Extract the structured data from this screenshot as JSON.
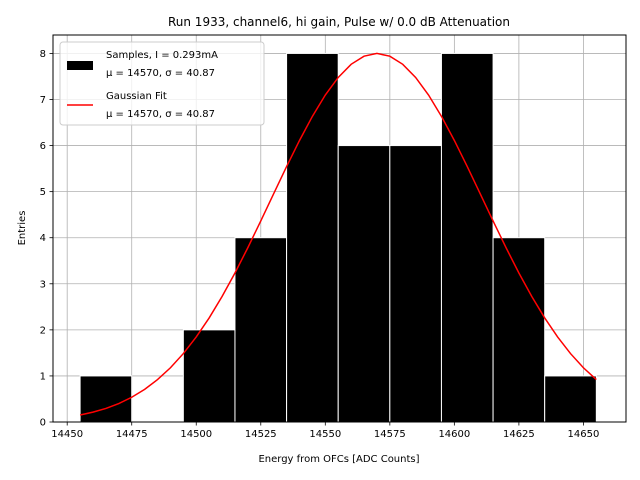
{
  "chart_data": {
    "type": "bar",
    "title": "Run 1933, channel6, hi gain, Pulse w/ 0.0 dB Attenuation",
    "xlabel": "Energy from OFCs [ADC Counts]",
    "ylabel": "Entries",
    "xlim": [
      14444.5,
      14666.5
    ],
    "ylim": [
      0,
      8.4
    ],
    "grid": true,
    "xticks": [
      14450,
      14475,
      14500,
      14525,
      14550,
      14575,
      14600,
      14625,
      14650
    ],
    "yticks": [
      0,
      1,
      2,
      3,
      4,
      5,
      6,
      7,
      8
    ],
    "histogram": {
      "name": "Samples, I = 0.293mA",
      "stats": "μ = 14570, σ = 40.87",
      "bin_edges": [
        14455,
        14475,
        14495,
        14515,
        14535,
        14555,
        14575,
        14595,
        14615,
        14635,
        14655
      ],
      "counts": [
        1,
        0,
        2,
        4,
        8,
        6,
        6,
        8,
        4,
        1
      ],
      "color": "#000000",
      "edge_color": "#ffffff"
    },
    "fit": {
      "name": "Gaussian Fit",
      "stats": "μ = 14570, σ = 40.87",
      "mean": 14570,
      "sigma": 40.87,
      "amplitude": 8,
      "x_range": [
        14455,
        14655
      ],
      "color": "#ff0000"
    },
    "legend": {
      "position": "upper-left",
      "items": [
        {
          "label": "Samples, I = 0.293mA",
          "stats": "μ = 14570, σ = 40.87",
          "kind": "patch",
          "color": "#000000"
        },
        {
          "label": "Gaussian Fit",
          "stats": "μ = 14570, σ = 40.87",
          "kind": "line",
          "color": "#ff0000"
        }
      ]
    }
  }
}
